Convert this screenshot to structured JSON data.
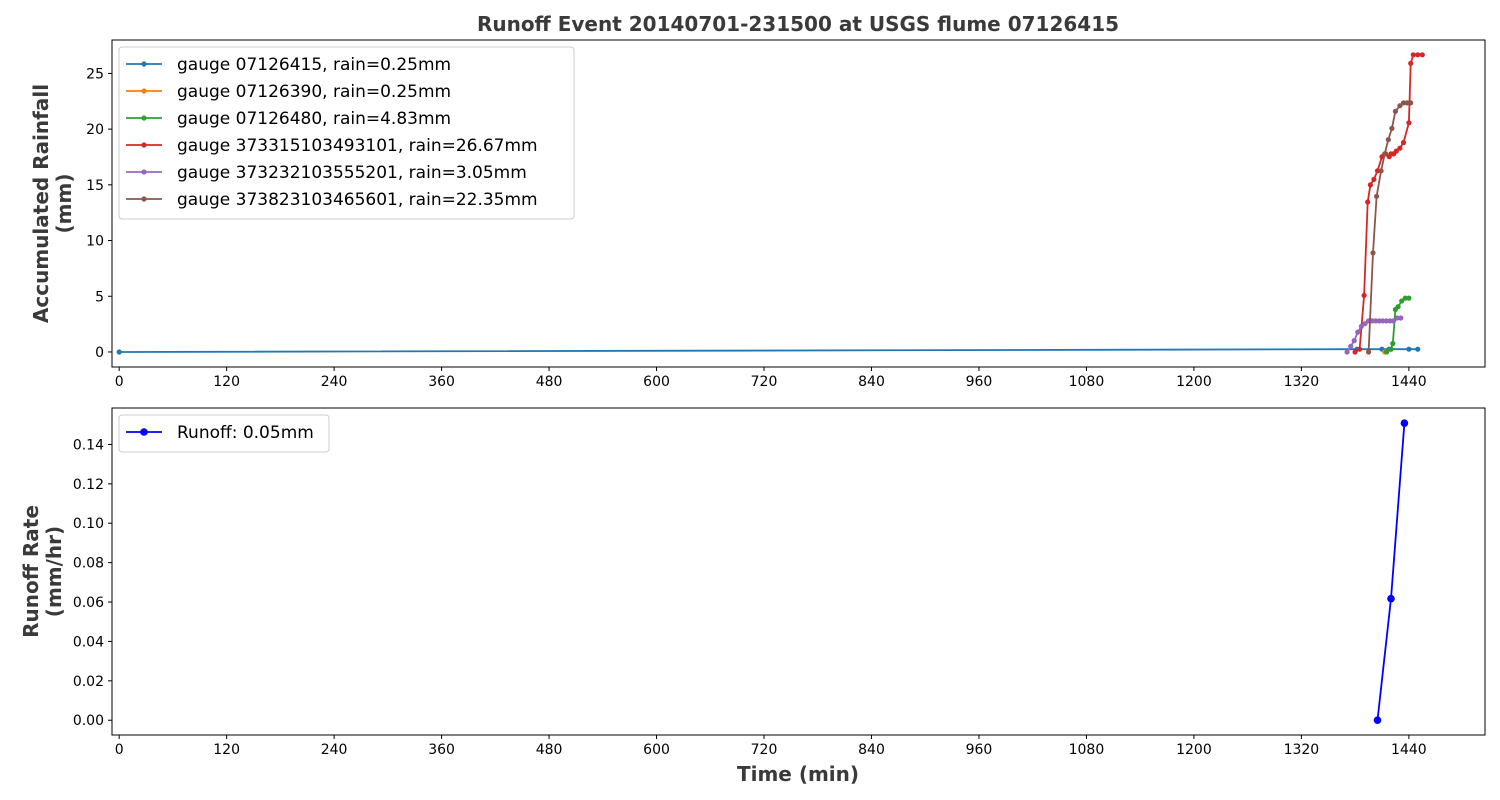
{
  "figure": {
    "title": "Runoff Event 20140701-231500 at USGS flume 07126415",
    "xlabel": "Time (min)"
  },
  "chart_data": [
    {
      "type": "line",
      "ylabel": "Accumulated Rainfall (mm)",
      "xlim": [
        -8,
        1525
      ],
      "ylim": [
        -1.35,
        28.0
      ],
      "xticks": [
        0,
        120,
        240,
        360,
        480,
        600,
        720,
        840,
        960,
        1080,
        1200,
        1320,
        1440
      ],
      "yticks": [
        0,
        5,
        10,
        15,
        20,
        25
      ],
      "grid": false,
      "legend_position": "top-left",
      "series": [
        {
          "name": "gauge 07126415, rain=0.25mm",
          "color": "#1f77b4",
          "marker": "circle-small",
          "x": [
            0,
            1382,
            1410,
            1418,
            1440,
            1450
          ],
          "y": [
            0,
            0.25,
            0.25,
            0.25,
            0.25,
            0.25
          ]
        },
        {
          "name": "gauge 07126390, rain=0.25mm",
          "color": "#ff7f0e",
          "marker": "circle-small",
          "x": [
            1413,
            1420
          ],
          "y": [
            0,
            0.25
          ]
        },
        {
          "name": "gauge 07126480, rain=4.83mm",
          "color": "#2ca02c",
          "marker": "circle-small",
          "x": [
            1415,
            1420,
            1422,
            1425,
            1428,
            1432,
            1436,
            1440
          ],
          "y": [
            0,
            0.25,
            0.76,
            3.81,
            4.06,
            4.57,
            4.83,
            4.83
          ]
        },
        {
          "name": "gauge 373315103493101, rain=26.67mm",
          "color": "#d62728",
          "marker": "circle-small",
          "x": [
            1380,
            1385,
            1390,
            1394,
            1397,
            1401,
            1405,
            1410,
            1414,
            1418,
            1420,
            1423,
            1426,
            1430,
            1434,
            1440,
            1442,
            1445,
            1450,
            1455
          ],
          "y": [
            0,
            0.25,
            5.08,
            13.46,
            14.99,
            15.49,
            16.26,
            17.53,
            17.78,
            17.53,
            17.78,
            17.78,
            18.03,
            18.29,
            18.8,
            20.57,
            25.91,
            26.67,
            26.67,
            26.67
          ]
        },
        {
          "name": "gauge 373232103555201, rain=3.05mm",
          "color": "#9467bd",
          "marker": "circle-small",
          "x": [
            1371,
            1375,
            1379,
            1383,
            1387,
            1391,
            1395,
            1399,
            1403,
            1407,
            1411,
            1415,
            1419,
            1423,
            1427,
            1431
          ],
          "y": [
            0,
            0.51,
            1.02,
            1.78,
            2.29,
            2.54,
            2.79,
            2.79,
            2.79,
            2.79,
            2.79,
            2.79,
            2.79,
            2.79,
            3.05,
            3.05
          ]
        },
        {
          "name": "gauge 373823103465601, rain=22.35mm",
          "color": "#8c564b",
          "marker": "circle-small",
          "x": [
            1395,
            1400,
            1404,
            1409,
            1413,
            1417,
            1421,
            1425,
            1430,
            1434,
            1438,
            1442
          ],
          "y": [
            0,
            8.89,
            13.97,
            16.26,
            17.78,
            19.05,
            20.07,
            21.59,
            22.1,
            22.35,
            22.35,
            22.35
          ]
        }
      ]
    },
    {
      "type": "line",
      "ylabel": "Runoff Rate (mm/hr)",
      "xlim": [
        -8,
        1525
      ],
      "ylim": [
        -0.0075,
        0.1585
      ],
      "xticks": [
        0,
        120,
        240,
        360,
        480,
        600,
        720,
        840,
        960,
        1080,
        1200,
        1320,
        1440
      ],
      "yticks": [
        0.0,
        0.02,
        0.04,
        0.06,
        0.08,
        0.1,
        0.12,
        0.14
      ],
      "ytick_labels": [
        "0.00",
        "0.02",
        "0.04",
        "0.06",
        "0.08",
        "0.10",
        "0.12",
        "0.14"
      ],
      "grid": false,
      "legend_position": "top-left",
      "series": [
        {
          "name": "Runoff: 0.05mm",
          "color": "#0000ff",
          "marker": "circle-large",
          "x": [
            1405,
            1420,
            1435
          ],
          "y": [
            0.0,
            0.0617,
            0.1508
          ]
        }
      ]
    }
  ]
}
